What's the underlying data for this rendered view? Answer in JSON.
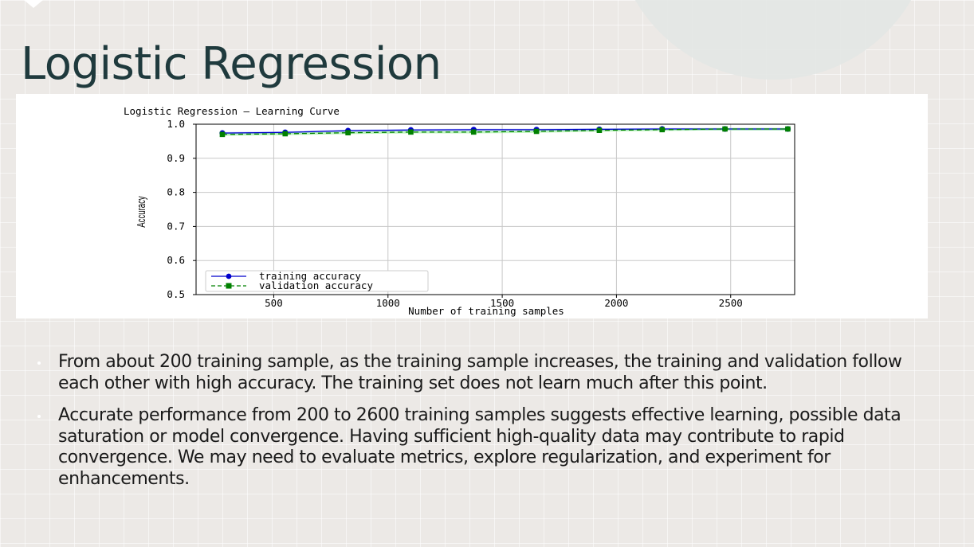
{
  "slide": {
    "title": "Logistic Regression",
    "bullets": [
      "From about 200 training sample, as the training sample increases, the training and validation follow each other with high accuracy. The training set does not learn much after this point.",
      "Accurate performance from 200 to 2600 training samples suggests effective learning, possible data saturation or model convergence. Having sufficient high-quality data may contribute to rapid convergence. We may need to evaluate metrics, explore regularization, and experiment for enhancements."
    ]
  },
  "colors": {
    "title": "#1f3a3d",
    "training": "#0000cc",
    "validation": "#008000",
    "band_training": "#a8b4ff",
    "band_validation": "#90ee90"
  },
  "chart_data": {
    "type": "line",
    "title": "Logistic Regression — Learning Curve",
    "xlabel": "Number of training samples",
    "ylabel": "Accuracy",
    "xlim": [
      160,
      2780
    ],
    "ylim": [
      0.5,
      1.0
    ],
    "xticks": [
      500,
      1000,
      1500,
      2000,
      2500
    ],
    "yticks": [
      0.5,
      0.6,
      0.7,
      0.8,
      0.9,
      1.0
    ],
    "grid": true,
    "legend_position": "lower-left",
    "x": [
      275,
      550,
      825,
      1100,
      1375,
      1650,
      1925,
      2200,
      2475,
      2750
    ],
    "series": [
      {
        "name": "training accuracy",
        "marker": "circle",
        "line_style": "solid",
        "values": [
          0.974,
          0.976,
          0.981,
          0.983,
          0.984,
          0.984,
          0.985,
          0.986,
          0.986,
          0.986
        ]
      },
      {
        "name": "validation accuracy",
        "marker": "square",
        "line_style": "dashed",
        "values": [
          0.97,
          0.972,
          0.975,
          0.977,
          0.977,
          0.979,
          0.982,
          0.984,
          0.986,
          0.986
        ]
      }
    ]
  }
}
